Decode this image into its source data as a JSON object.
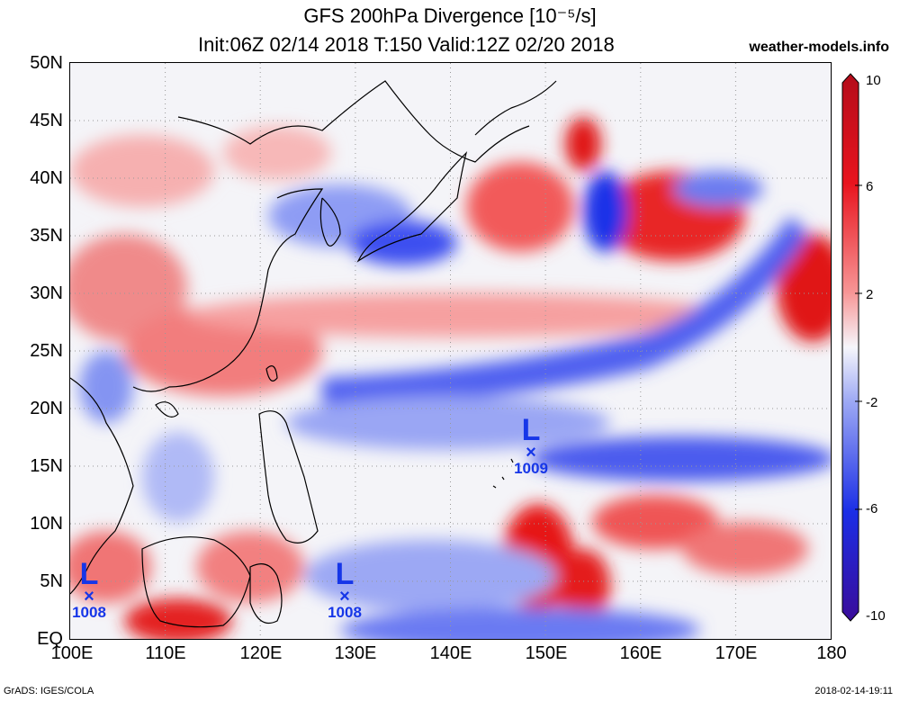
{
  "header": {
    "title": "GFS 200hPa Divergence [10⁻⁵/s]",
    "subtitle": "Init:06Z 02/14 2018 T:150 Valid:12Z 02/20 2018",
    "site": "weather-models.info"
  },
  "axes": {
    "lat_labels": [
      "50N",
      "45N",
      "40N",
      "35N",
      "30N",
      "25N",
      "20N",
      "15N",
      "10N",
      "5N",
      "EQ"
    ],
    "lon_labels": [
      "100E",
      "110E",
      "120E",
      "130E",
      "140E",
      "150E",
      "160E",
      "170E",
      "180"
    ]
  },
  "colorbar": {
    "labels": [
      "10",
      "6",
      "2",
      "-2",
      "-6",
      "-10"
    ],
    "values": [
      10,
      6,
      2,
      -2,
      -6,
      -10
    ],
    "colors": {
      "deep_red": "#b40c1a",
      "red": "#e8141e",
      "light_red": "#f79696",
      "white": "#f6f6fb",
      "light_blue": "#9ca8f4",
      "blue": "#1b2ee6",
      "deep_blue": "#3a0c9a"
    }
  },
  "lows": [
    {
      "letter": "L",
      "marker": "×",
      "pressure": "1008"
    },
    {
      "letter": "L",
      "marker": "×",
      "pressure": "1008"
    },
    {
      "letter": "L",
      "marker": "×",
      "pressure": "1009"
    }
  ],
  "footer": {
    "left": "GrADS: IGES/COLA",
    "right": "2018-02-14-19:11"
  }
}
